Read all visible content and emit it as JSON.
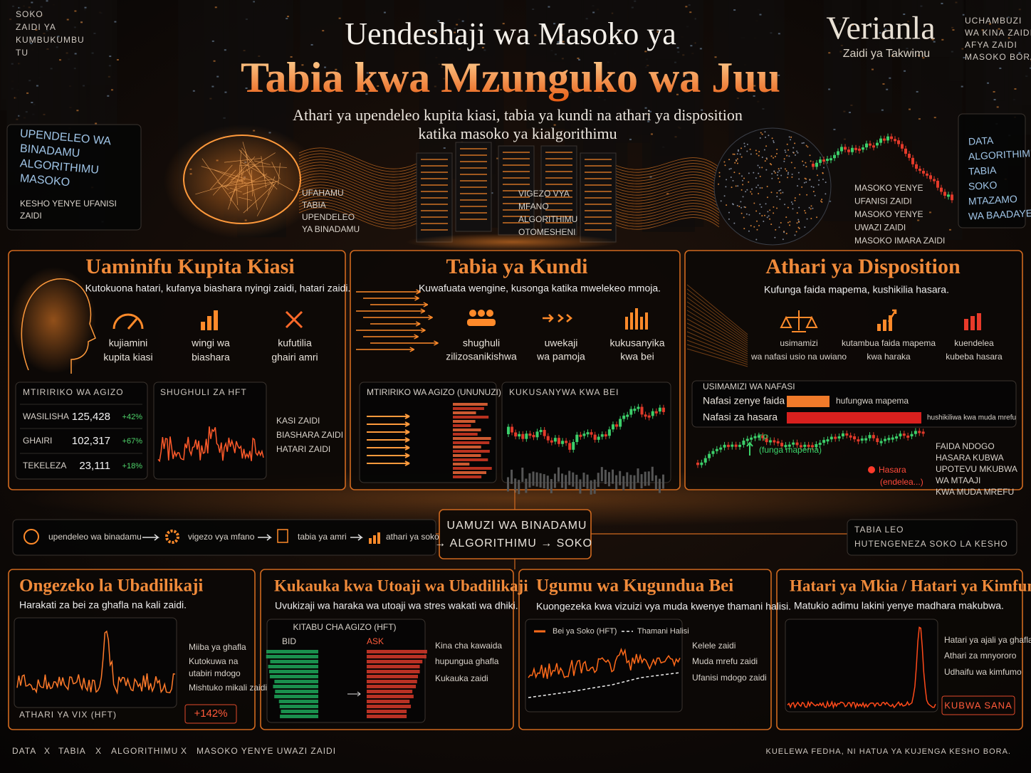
{
  "corner_left": [
    "SOKO",
    "ZAIDI YA",
    "KUMBUKUMBU",
    "TU"
  ],
  "header": {
    "title": "Uendeshaji wa Masoko ya",
    "highlight": "Tabia kwa Mzunguko wa Juu",
    "subtitle": [
      "Athari ya upendeleo kupita kiasi, tabia ya kundi na athari ya disposition",
      "katika masoko ya kialgorithimu"
    ]
  },
  "brand": {
    "name": "Verianla",
    "tagline": "Zaidi ya Takwimu"
  },
  "corner_right": [
    "UCHAMBUZI",
    "WA KINA ZAIDI",
    "AFYA ZAIDI",
    "MASOKO BORA"
  ],
  "side_left": {
    "lines": [
      "UPENDELEO WA",
      "BINADAMU",
      "ALGORITHIMU",
      "MASOKO"
    ],
    "note": [
      "KESHO YENYE UFANISI",
      "ZAIDI"
    ]
  },
  "side_right": [
    "DATA",
    "ALGORITHIMU",
    "TABIA",
    "SOKO",
    "MTAZAMO",
    "WA BAADAYE"
  ],
  "hero": {
    "brain": [
      "UFAHAMU",
      "TABIA",
      "UPENDELEO",
      "YA BINADAMU"
    ],
    "servers": [
      "VIGEZO VYA",
      "MFANO",
      "ALGORITHIMU",
      "OTOMESHENI"
    ],
    "globe": [
      "MASOKO YENYE",
      "UFANISI ZAIDI",
      "MASOKO YENYE",
      "UWAZI ZAIDI",
      "MASOKO IMARA ZAIDI"
    ]
  },
  "overconfidence": {
    "title": "Uaminifu Kupita Kiasi",
    "subtitle": "Kutokuona hatari, kufanya biashara nyingi zaidi, hatari zaidi.",
    "icons": [
      [
        "kujiamini",
        "kupita kiasi"
      ],
      [
        "wingi wa",
        "biashara"
      ],
      [
        "kufutilia",
        "ghairi amri"
      ]
    ],
    "table": {
      "title": "MTIRIRIKO WA AGIZO",
      "rows": [
        [
          "WASILISHA",
          "125,428",
          "+42%"
        ],
        [
          "GHAIRI",
          "102,317",
          "+67%"
        ],
        [
          "TEKELEZA",
          "23,111",
          "+18%"
        ]
      ]
    },
    "chart_title": "SHUGHULI ZA HFT",
    "notes": [
      "KASI ZAIDI",
      "BIASHARA ZAIDI",
      "HATARI ZAIDI"
    ]
  },
  "herding": {
    "title": "Tabia ya Kundi",
    "subtitle": "Kuwafuata wengine, kusonga katika mwelekeo mmoja.",
    "icons": [
      [
        "shughuli",
        "zilizosanikishwa"
      ],
      [
        "uwekaji",
        "wa pamoja"
      ],
      [
        "kukusanyika",
        "kwa bei"
      ]
    ],
    "flow_title": "MTIRIRIKO WA AGIZO (UNUNUZI)",
    "chart_title": "KUKUSANYWA KWA BEI"
  },
  "disposition": {
    "title": "Athari ya Disposition",
    "subtitle": "Kufunga faida mapema, kushikilia hasara.",
    "icons": [
      [
        "usimamizi",
        "wa nafasi usio na uwiano"
      ],
      [
        "kutambua faida mapema",
        "kwa haraka"
      ],
      [
        "kuendelea",
        "kubeba hasara"
      ]
    ],
    "positions": {
      "title": "USIMAMIZI WA NAFASI",
      "rows": [
        [
          "Nafasi zenye faida",
          "hufungwa mapema"
        ],
        [
          "Nafasi za hasara",
          "hushikiliwa kwa muda mrefu"
        ]
      ]
    },
    "tp": [
      "TP",
      "(funga mapema)"
    ],
    "loss": [
      "Hasara",
      "(endelea...)"
    ],
    "notes": [
      "FAIDA NDOGO",
      "HASARA KUBWA",
      "UPOTEVU MKUBWA",
      "WA MTAAJI",
      "KWA MUDA MREFU"
    ]
  },
  "flow": {
    "steps": [
      "upendeleo wa binadamu",
      "vigezo vya mfano",
      "tabia ya amri",
      "athari ya soko"
    ],
    "center": [
      "UAMUZI WA BINADAMU",
      "→ ALGORITHIMU → SOKO"
    ],
    "right": [
      "TABIA LEO",
      "HUTENGENEZA SOKO LA KESHO"
    ]
  },
  "volatility": {
    "title": "Ongezeko la Ubadilikaji",
    "subtitle": "Harakati za bei za ghafla na kali zaidi.",
    "notes": [
      "Miiba ya ghafla",
      "Kutokuwa na",
      "utabiri mdogo",
      "Mishtuko mikali zaidi"
    ],
    "caption": "ATHARI YA VIX (HFT)",
    "badge": "+142%"
  },
  "liquidity": {
    "title": "Kukauka kwa Utoaji wa Ubadilikaji",
    "subtitle": "Uvukizaji wa haraka wa utoaji wa stres wakati wa dhiki.",
    "book_title": "KITABU CHA AGIZO (HFT)",
    "bid": "BID",
    "ask": "ASK",
    "notes": [
      "Kina cha kawaida",
      "hupungua ghafla",
      "Kukauka zaidi"
    ]
  },
  "price_discovery": {
    "title": "Ugumu wa Kugundua Bei",
    "subtitle": "Kuongezeka kwa vizuizi vya muda kwenye thamani halisi.",
    "legend": [
      "Bei ya Soko (HFT)",
      "Thamani Halisi"
    ],
    "notes": [
      "Kelele zaidi",
      "Muda mrefu zaidi",
      "Ufanisi mdogo zaidi"
    ]
  },
  "tail_risk": {
    "title": "Hatari ya Mkia / Hatari ya Kimfumo",
    "subtitle": "Matukio adimu lakini yenye madhara makubwa.",
    "notes": [
      "Hatari ya ajali ya ghafla",
      "Athari za mnyororo",
      "Udhaifu wa kimfumo"
    ],
    "badge": "KUBWA SANA"
  },
  "footer": {
    "items": [
      "DATA",
      "TABIA",
      "ALGORITHIMU",
      "MASOKO YENYE UWAZI ZAIDI"
    ],
    "separator": "X",
    "tagline": "KUELEWA FEDHA, NI HATUA YA KUJENGA KESHO BORA."
  }
}
